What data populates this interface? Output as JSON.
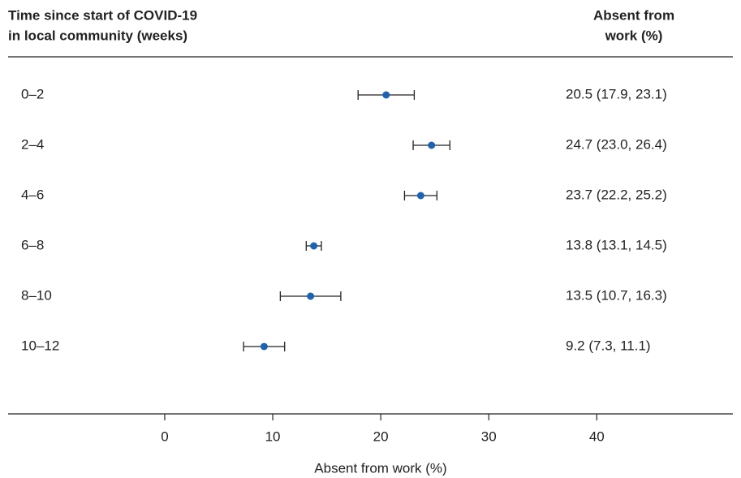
{
  "chart_data": {
    "type": "forest",
    "left_header": [
      "Time since start of COVID-19",
      "in local community (weeks)"
    ],
    "right_header": [
      "Absent from",
      "work (%)"
    ],
    "xlabel": "Absent from work (%)",
    "categories": [
      "0–2",
      "2–4",
      "4–6",
      "6–8",
      "8–10",
      "10–12"
    ],
    "values": [
      20.5,
      24.7,
      23.7,
      13.8,
      13.5,
      9.2
    ],
    "lower": [
      17.9,
      23.0,
      22.2,
      13.1,
      10.7,
      7.3
    ],
    "upper": [
      23.1,
      26.4,
      25.2,
      14.5,
      16.3,
      11.1
    ],
    "value_labels": [
      "20.5 (17.9, 23.1)",
      "24.7 (23.0, 26.4)",
      "23.7 (22.2, 25.2)",
      "13.8 (13.1, 14.5)",
      "13.5 (10.7, 16.3)",
      "9.2 (7.3, 11.1)"
    ],
    "color": "#1f62ad",
    "xlim": [
      -14.5,
      52.6
    ],
    "xticks": [
      0,
      10,
      20,
      30,
      40
    ]
  }
}
